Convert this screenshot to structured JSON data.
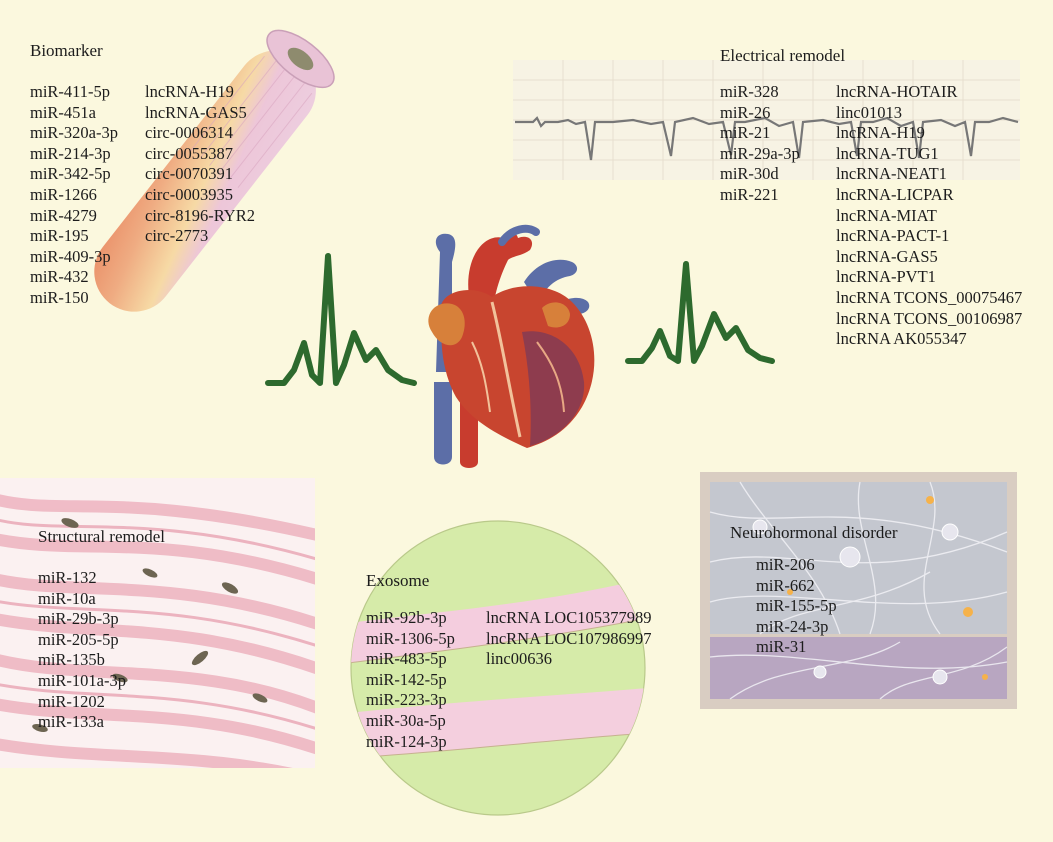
{
  "biomarker": {
    "title": "Biomarker",
    "mirnas": [
      "miR-411-5p",
      "miR-451a",
      "miR-320a-3p",
      "miR-214-3p",
      "miR-342-5p",
      "miR-1266",
      "miR-4279",
      "miR-195",
      "miR-409-3p",
      "miR-432",
      "miR-150"
    ],
    "others": [
      "lncRNA-H19",
      "lncRNA-GAS5",
      "circ-0006314",
      "circ-0055387",
      "circ-0070391",
      "circ-0003935",
      "circ-8196-RYR2",
      "circ-2773"
    ]
  },
  "electrical": {
    "title": "Electrical remodel",
    "mirnas": [
      "miR-328",
      "miR-26",
      "miR-21",
      "miR-29a-3p",
      "miR-30d",
      "miR-221"
    ],
    "others": [
      "lncRNA-HOTAIR",
      "linc01013",
      "lncRNA-H19",
      "lncRNA-TUG1",
      "lncRNA-NEAT1",
      "lncRNA-LICPAR",
      "lncRNA-MIAT",
      "lncRNA-PACT-1",
      "lncRNA-GAS5",
      "lncRNA-PVT1",
      "lncRNA TCONS_00075467",
      "lncRNA TCONS_00106987",
      "lncRNA AK055347"
    ]
  },
  "structural": {
    "title": "Structural remodel",
    "mirnas": [
      "miR-132",
      "miR-10a",
      "miR-29b-3p",
      "miR-205-5p",
      "miR-135b",
      "miR-101a-3p",
      "miR-1202",
      "miR-133a"
    ]
  },
  "exosome": {
    "title": "Exosome",
    "mirnas": [
      "miR-92b-3p",
      "miR-1306-5p",
      "miR-483-5p",
      "miR-142-5p",
      "miR-223-3p",
      "miR-30a-5p",
      "miR-124-3p"
    ],
    "others": [
      "lncRNA LOC105377989",
      "lncRNA LOC107986997",
      "linc00636"
    ]
  },
  "neuro": {
    "title": "Neurohormonal disorder",
    "mirnas": [
      "miR-206",
      "miR-662",
      "miR-155-5p",
      "miR-24-3p",
      "miR-31"
    ]
  },
  "colors": {
    "background": "#fbf8de",
    "ecg_wave": "#2d6a2e",
    "tube_top": "#e9b9cf",
    "tube_bottom": "#e8895e",
    "exosome_green": "#d5eaa6",
    "exosome_pink": "#f4c8dc",
    "tissue_pink": "#efb9c2",
    "neuro_bg": "#c9c4cf",
    "heart_red": "#c8392b",
    "vessel_blue": "#5d6fa6"
  },
  "icons": [
    "heart-illustration",
    "ecg-wave-icon",
    "blood-tube-icon",
    "ecg-strip-image",
    "tissue-histology-image",
    "exosome-sphere-icon",
    "neuron-network-image"
  ]
}
